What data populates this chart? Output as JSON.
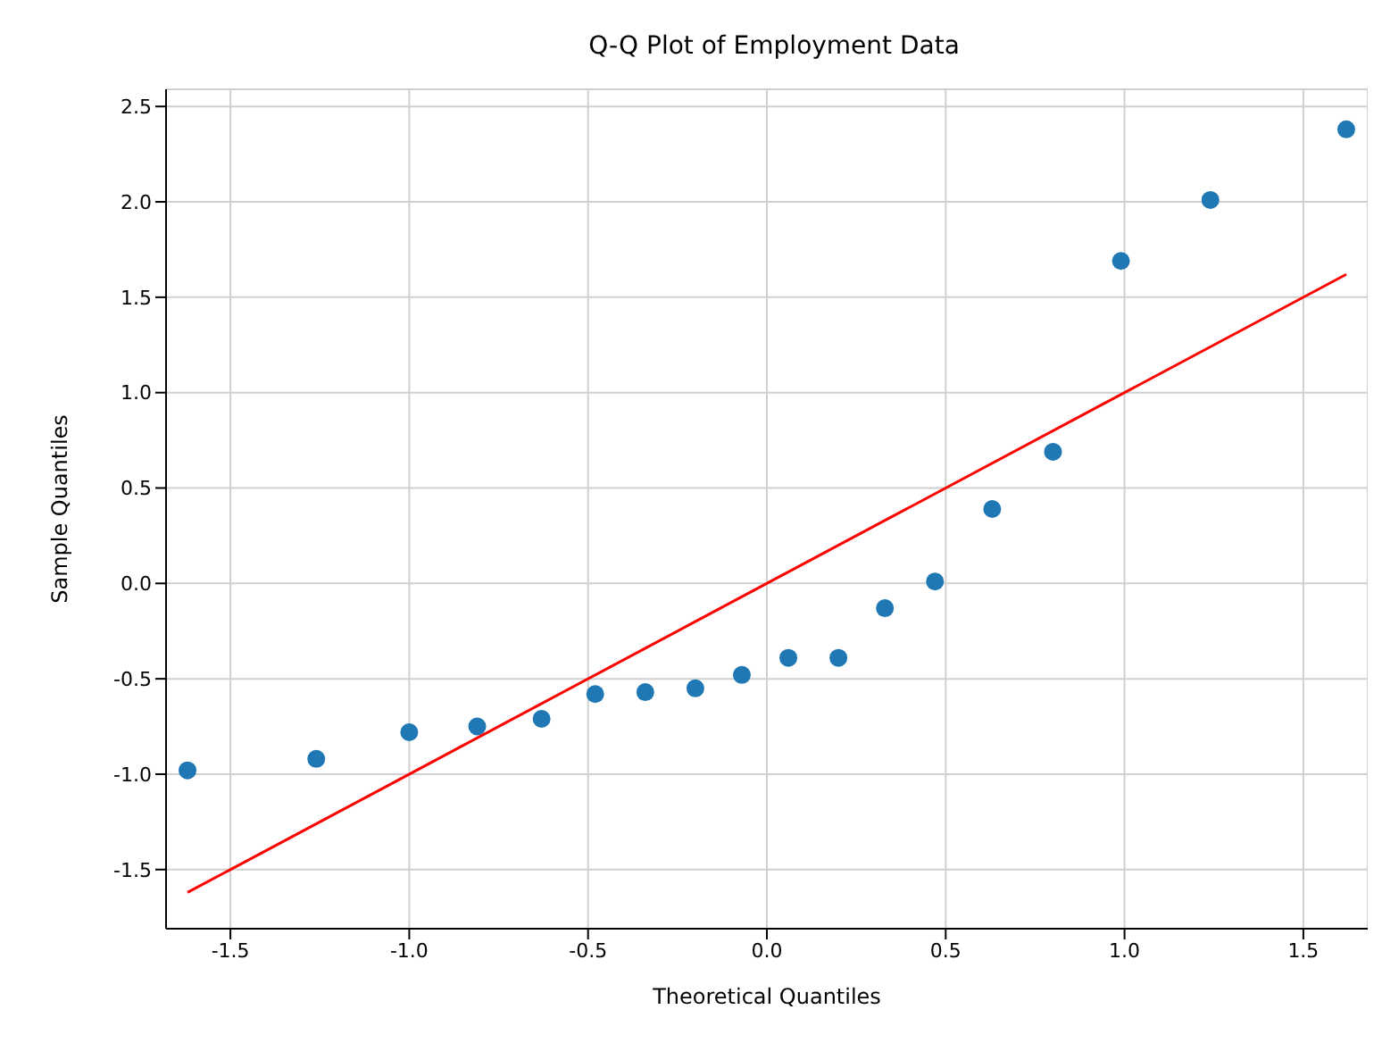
{
  "chart_data": {
    "type": "scatter",
    "title": "Q-Q Plot of Employment Data",
    "xlabel": "Theoretical Quantiles",
    "ylabel": "Sample Quantiles",
    "series": [
      {
        "color": "#1f77b4",
        "marker": "circle",
        "x": [
          -1.62,
          -1.26,
          -1.0,
          -0.81,
          -0.63,
          -0.48,
          -0.34,
          -0.2,
          -0.07,
          0.06,
          0.2,
          0.33,
          0.47,
          0.63,
          0.8,
          0.99,
          1.24,
          1.62
        ],
        "values": [
          -0.98,
          -0.92,
          -0.78,
          -0.75,
          -0.71,
          -0.58,
          -0.57,
          -0.55,
          -0.48,
          -0.39,
          -0.39,
          -0.13,
          0.01,
          0.39,
          0.69,
          1.69,
          2.01,
          2.38
        ]
      },
      {
        "type": "line",
        "color": "#ff0000",
        "marker": "none",
        "x": [
          -1.62,
          1.62
        ],
        "values": [
          -1.62,
          1.62
        ]
      }
    ],
    "xlim": [
      -1.68,
      1.68
    ],
    "xticks": [
      -1.5,
      {
        "value": -1,
        "label": "-1.0"
      },
      -0.5,
      {
        "value": 0,
        "label": "0.0"
      },
      0.5,
      {
        "value": 1,
        "label": "1.0"
      },
      1.5
    ],
    "ylim": [
      -1.81,
      2.59
    ],
    "yticks": [
      -1.5,
      {
        "value": -1,
        "label": "-1.0"
      },
      -0.5,
      {
        "value": 0,
        "label": "0.0"
      },
      0.5,
      {
        "value": 1,
        "label": "1.0"
      },
      1.5,
      {
        "value": 2,
        "label": "2.0"
      },
      2.5
    ],
    "grid": true
  }
}
